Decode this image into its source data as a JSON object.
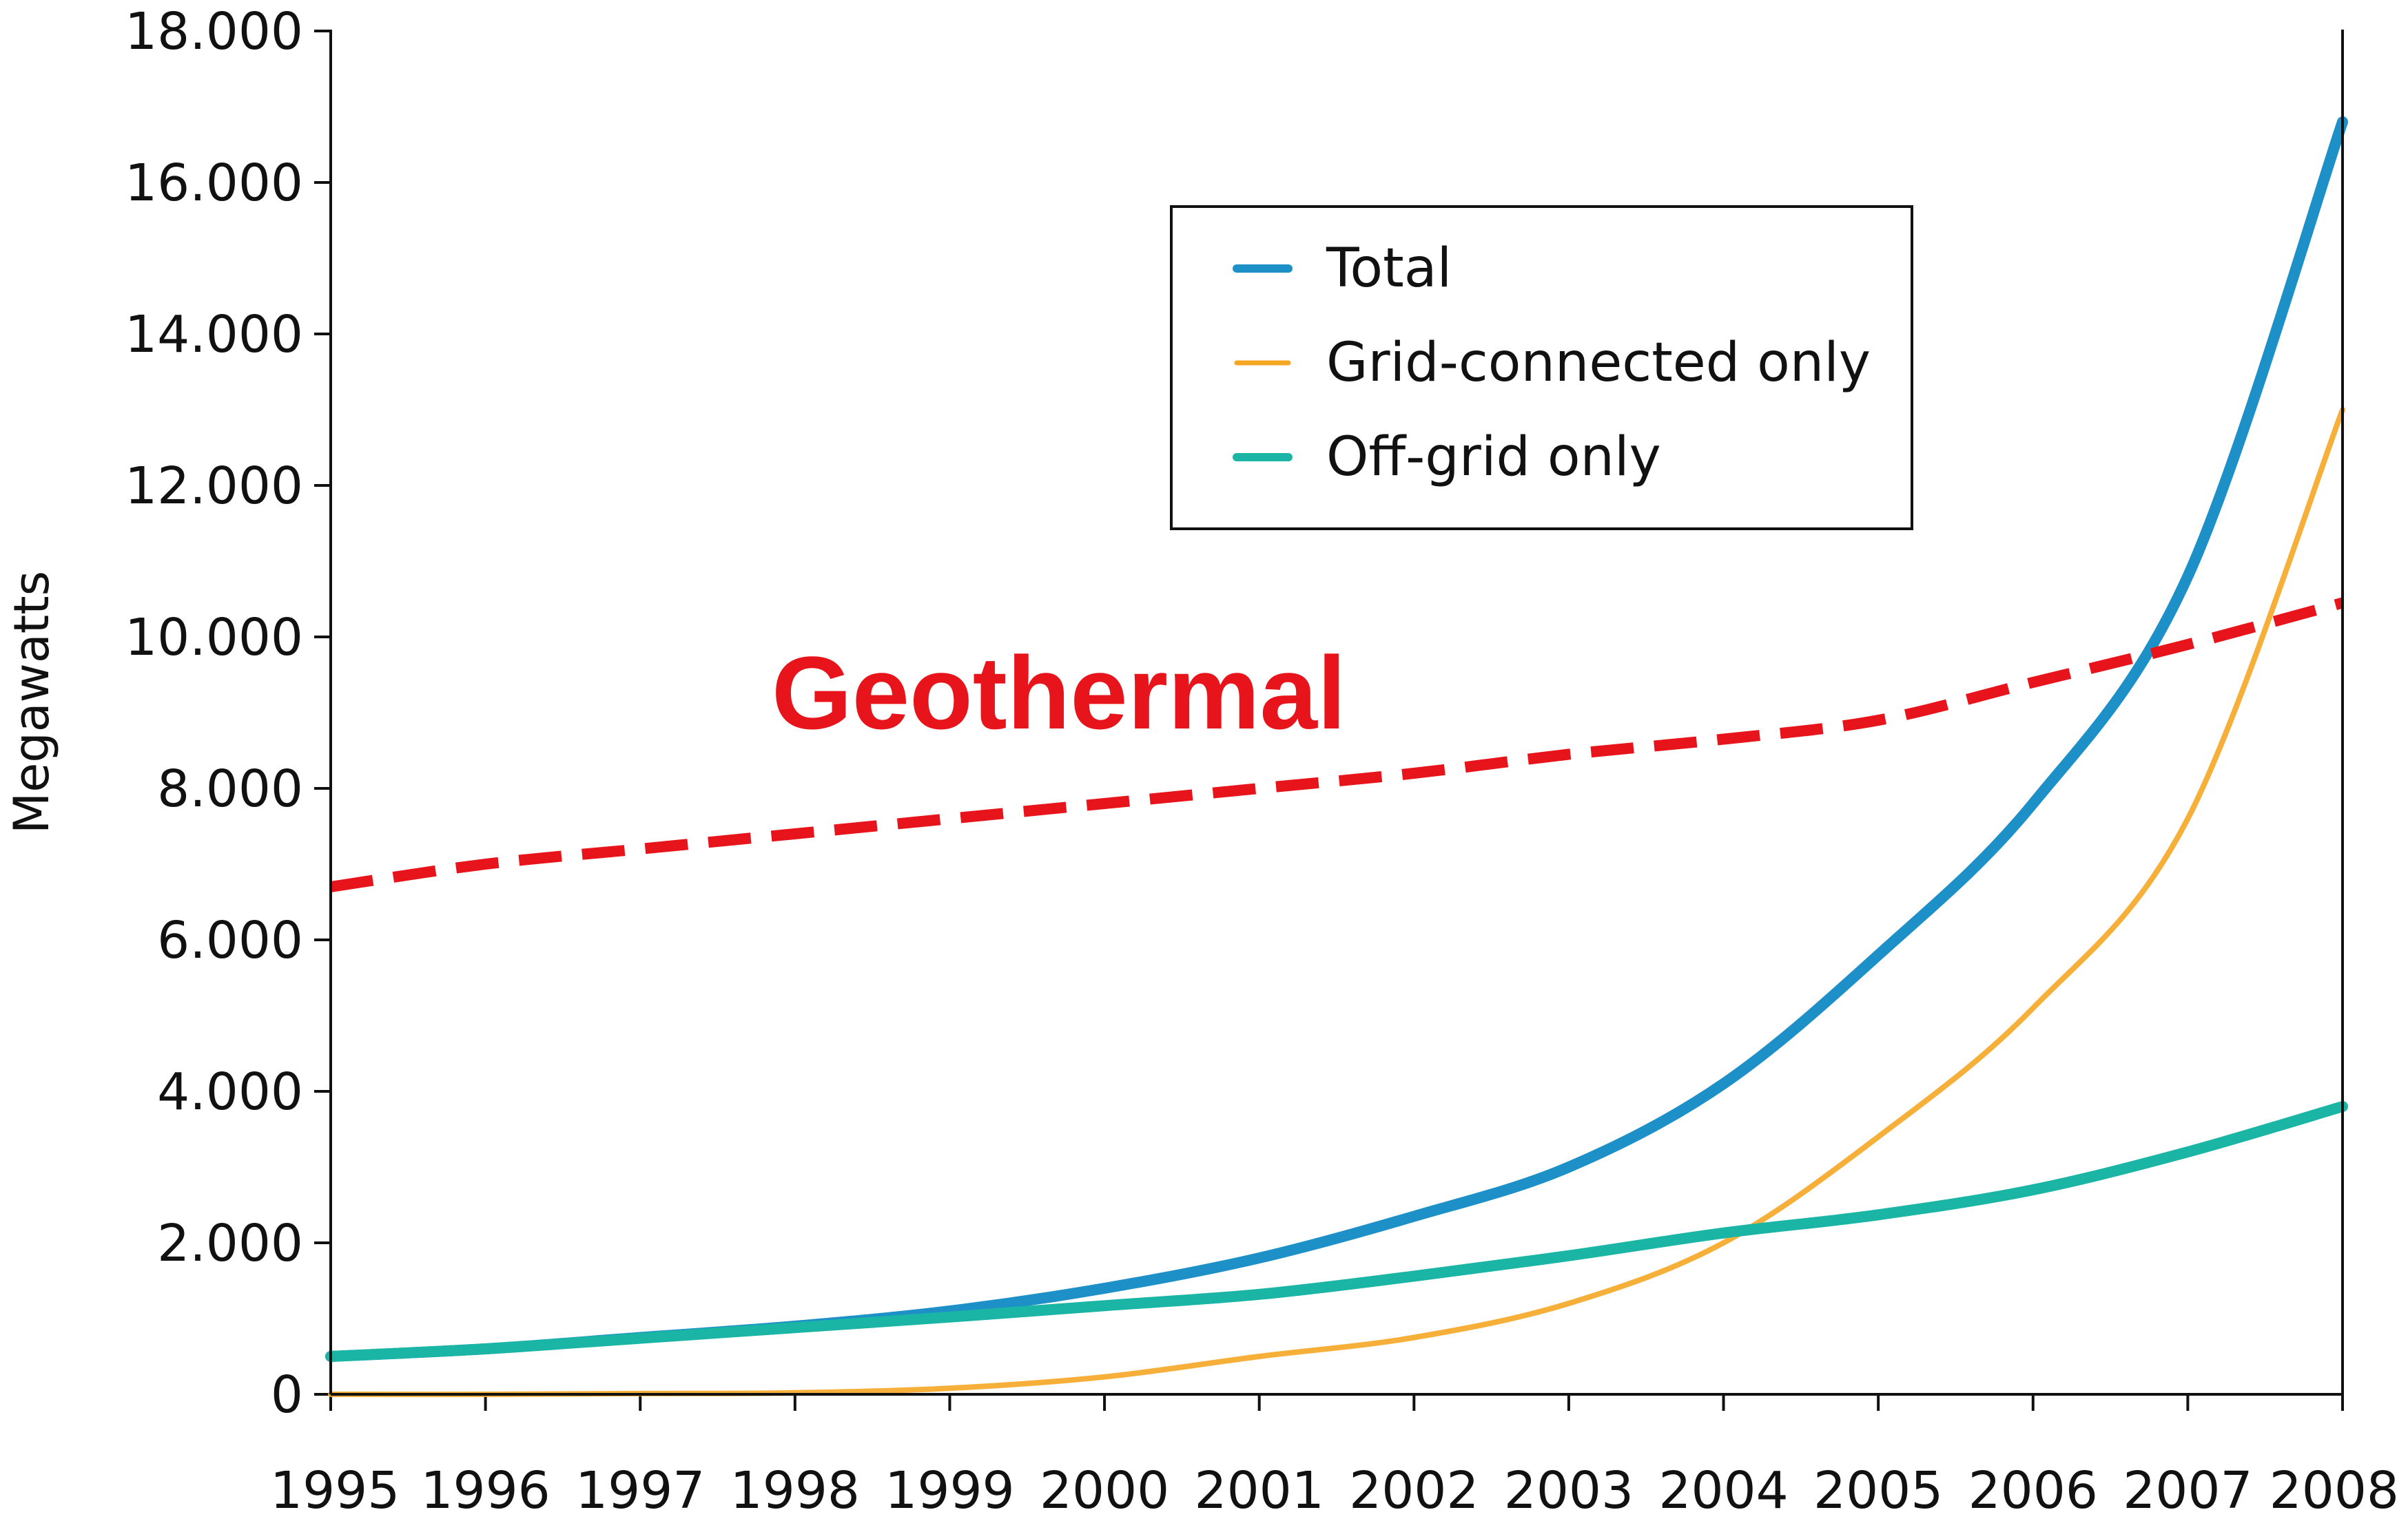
{
  "chart_data": {
    "type": "line",
    "title": "",
    "xlabel": "",
    "ylabel": "Megawatts",
    "x": [
      "1995",
      "1996",
      "1997",
      "1998",
      "1999",
      "2000",
      "2001",
      "2002",
      "2003",
      "2004",
      "2005",
      "2006",
      "2007",
      "2008"
    ],
    "ylim": [
      0,
      18000
    ],
    "yticks": [
      0,
      2000,
      4000,
      6000,
      8000,
      10000,
      12000,
      14000,
      16000,
      18000
    ],
    "ytick_labels": [
      "0",
      "2.000",
      "4.000",
      "6.000",
      "8.000",
      "10.000",
      "12.000",
      "14.000",
      "16.000",
      "18.000"
    ],
    "grid": false,
    "legend_position": "top-right",
    "series": [
      {
        "name": "Total",
        "color": "#1e90c8",
        "values": [
          500,
          600,
          750,
          900,
          1100,
          1400,
          1800,
          2350,
          3000,
          4100,
          5800,
          7800,
          10800,
          16800
        ]
      },
      {
        "name": "Grid-connected only",
        "color": "#f5a623",
        "values": [
          0,
          0,
          10,
          20,
          80,
          230,
          500,
          750,
          1200,
          2000,
          3400,
          5100,
          7600,
          13000
        ]
      },
      {
        "name": "Off-grid only",
        "color": "#1ab5a5",
        "values": [
          500,
          600,
          740,
          880,
          1020,
          1170,
          1320,
          1560,
          1830,
          2130,
          2370,
          2700,
          3200,
          3800
        ]
      }
    ],
    "annotations": [
      {
        "text": "Geothermal",
        "color": "#e8141b",
        "style": "dashed",
        "values": [
          6700,
          7000,
          7200,
          7400,
          7600,
          7800,
          8000,
          8200,
          8450,
          8650,
          8900,
          9400,
          9900,
          10450
        ]
      }
    ]
  }
}
